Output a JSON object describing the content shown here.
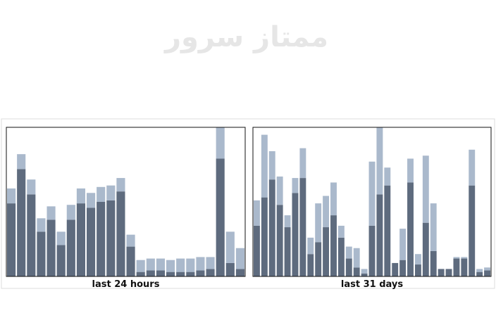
{
  "watermark": "ممتاز سرور",
  "chart_data": [
    {
      "type": "bar",
      "stacked": true,
      "title": "last 24 hours",
      "ylim": [
        0,
        100
      ],
      "series": [
        {
          "color": "#5e6b7e",
          "values": [
            49,
            72,
            55,
            30,
            38,
            21,
            38,
            49,
            46,
            50,
            51,
            57,
            20,
            3,
            4,
            4,
            3,
            3,
            3,
            4,
            5,
            79,
            9,
            5
          ]
        },
        {
          "color": "#aab9cc",
          "values": [
            10,
            10,
            10,
            9,
            9,
            9,
            10,
            10,
            10,
            10,
            10,
            9,
            8,
            8,
            8,
            8,
            8,
            9,
            9,
            9,
            8,
            21,
            21,
            14
          ]
        }
      ]
    },
    {
      "type": "bar",
      "stacked": true,
      "title": "last 31 days",
      "ylim": [
        0,
        100
      ],
      "series": [
        {
          "color": "#5e6b7e",
          "values": [
            34,
            53,
            65,
            48,
            33,
            56,
            66,
            15,
            23,
            33,
            41,
            26,
            12,
            6,
            2,
            34,
            55,
            61,
            9,
            11,
            63,
            8,
            36,
            17,
            5,
            5,
            12,
            12,
            61,
            3,
            4
          ]
        },
        {
          "color": "#aab9cc",
          "values": [
            17,
            42,
            19,
            19,
            8,
            10,
            20,
            11,
            26,
            21,
            22,
            8,
            8,
            13,
            3,
            43,
            45,
            12,
            0,
            21,
            16,
            7,
            45,
            32,
            0,
            0,
            1,
            1,
            24,
            2,
            2
          ]
        }
      ]
    }
  ]
}
